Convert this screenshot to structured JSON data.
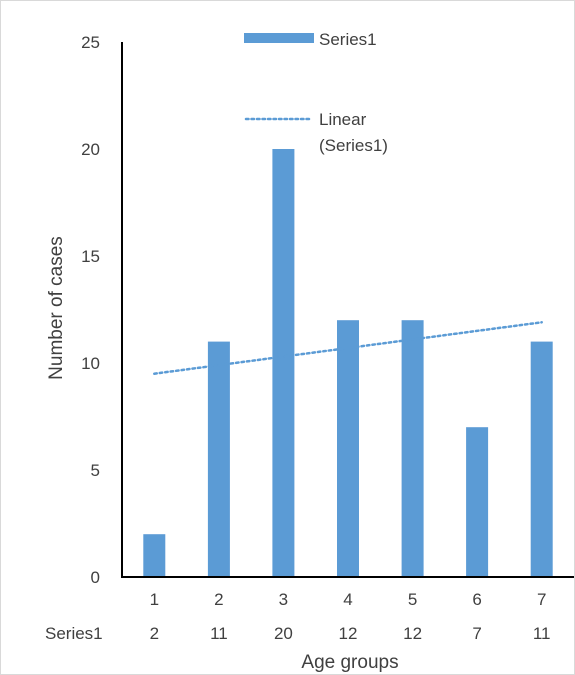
{
  "chart_data": {
    "type": "bar",
    "title": "",
    "xlabel": "Age groups",
    "ylabel": "Number of cases",
    "categories": [
      "1",
      "2",
      "3",
      "4",
      "5",
      "6",
      "7"
    ],
    "series": [
      {
        "name": "Series1",
        "values": [
          2,
          11,
          20,
          12,
          12,
          7,
          11
        ],
        "color": "#5B9BD5"
      }
    ],
    "trendline": {
      "type": "linear",
      "label": "Linear (Series1)",
      "label_lines": [
        "Linear",
        "(Series1)"
      ],
      "color": "#5B9BD5",
      "style": "dotted",
      "start_value": 9.5,
      "end_value": 11.9
    },
    "data_table": {
      "row_label": "Series1",
      "values": [
        "2",
        "11",
        "20",
        "12",
        "12",
        "7",
        "11"
      ]
    },
    "ylim": [
      0,
      25
    ],
    "yticks": [
      "0",
      "5",
      "10",
      "15",
      "20",
      "25"
    ],
    "grid": false,
    "legend_position": "top-right"
  }
}
